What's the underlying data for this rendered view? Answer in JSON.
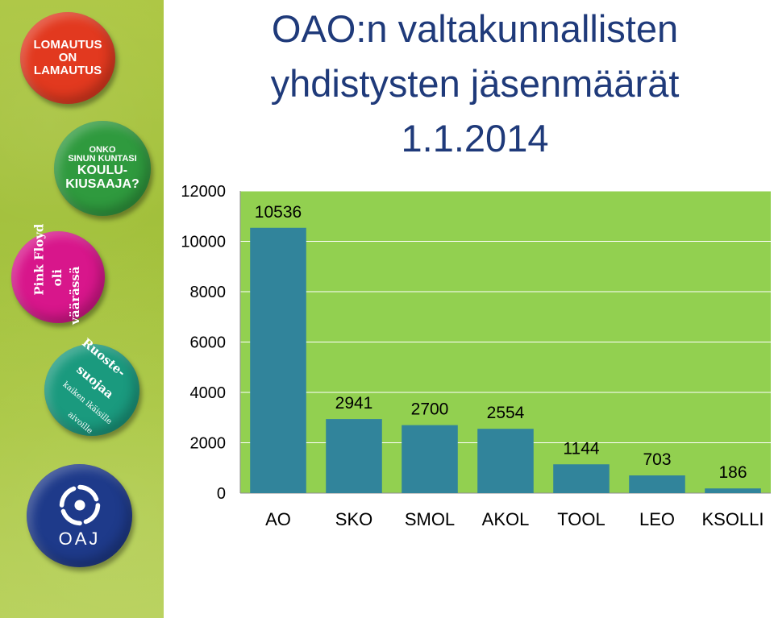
{
  "sidebar": {
    "badges": [
      {
        "name": "lomautus",
        "lines": [
          "LOMAUTUS",
          "ON",
          "LAMAUTUS"
        ],
        "color": "#e2391f"
      },
      {
        "name": "koulukiusaaja",
        "lines": [
          "ONKO",
          "SINUN KUNTASI",
          "KOULU-",
          "KIUSAAJA?"
        ],
        "color": "#2f9a3e"
      },
      {
        "name": "pinkfloyd",
        "lines": [
          "Pink Floyd",
          "oli",
          "väärässä"
        ],
        "color": "#d8168b"
      },
      {
        "name": "ruostesuojaa",
        "lines": [
          "Ruoste-",
          "suojaa",
          "kaiken ikäisille",
          "aivoille"
        ],
        "color": "#1a9a7e"
      },
      {
        "name": "oaj",
        "lines": [
          "OAJ"
        ],
        "color": "#1e3a8a"
      }
    ]
  },
  "chart_data": {
    "type": "bar",
    "title": "OAO:n valtakunnallisten yhdistysten jäsenmäärät 1.1.2014",
    "title_lines": [
      "OAO:n valtakunnallisten",
      "yhdistysten jäsenmäärät",
      "1.1.2014"
    ],
    "categories": [
      "AO",
      "SKO",
      "SMOL",
      "AKOL",
      "TOOL",
      "LEO",
      "KSOLLI"
    ],
    "values": [
      10536,
      2941,
      2700,
      2554,
      1144,
      703,
      186
    ],
    "ylim": [
      0,
      12000
    ],
    "yticks": [
      "12000",
      "10000",
      "8000",
      "6000",
      "4000",
      "2000",
      "0"
    ],
    "xlabel": "",
    "ylabel": "",
    "grid": true,
    "colors": {
      "bar": "#31849b",
      "plot_bg": "#92d050",
      "grid": "#ffffff",
      "title": "#1f3a7a"
    }
  }
}
